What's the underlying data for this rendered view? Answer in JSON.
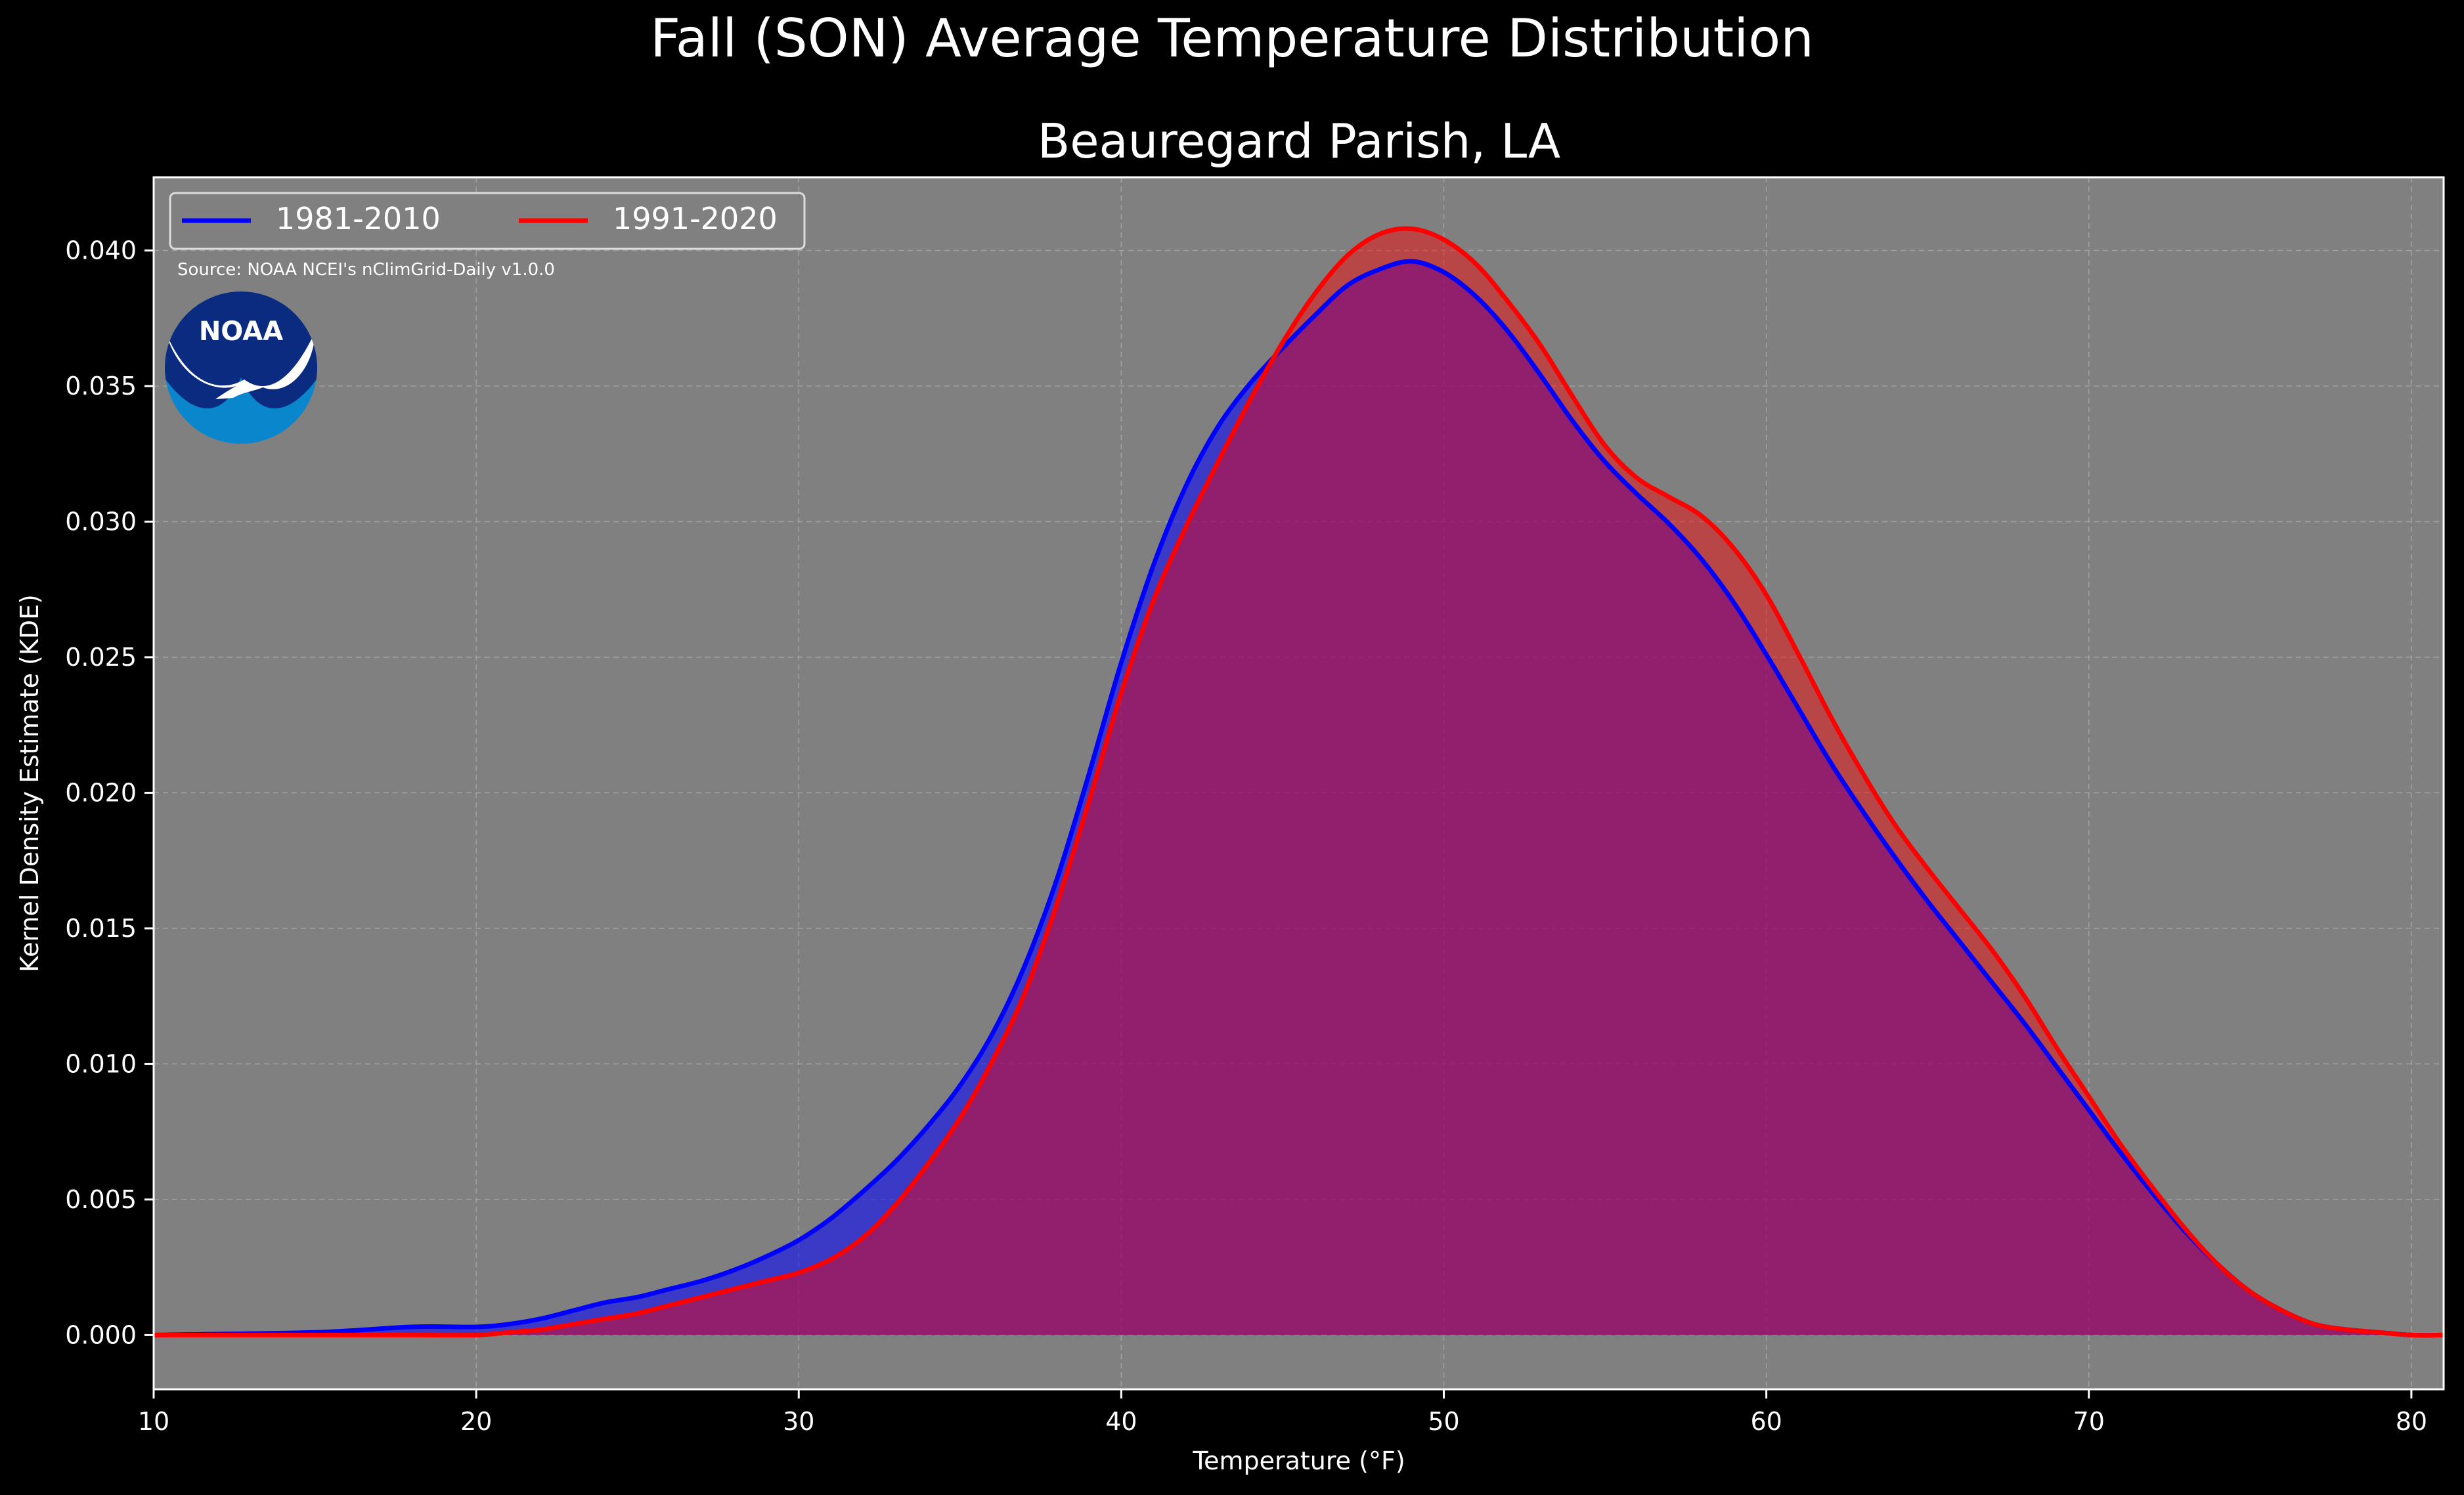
{
  "figure": {
    "suptitle": "Fall (SON) Average Temperature Distribution",
    "source_note": "Source: NOAA NCEI's nClimGrid-Daily v1.0.0",
    "logo_text": "NOAA"
  },
  "colors": {
    "figure_bg": "#000000",
    "axes_bg": "#808080",
    "text": "#ffffff",
    "grid": "#b0b0b0",
    "series_1981": "#0000ff",
    "series_1991": "#ff0000",
    "logo_dark": "#0a2b80",
    "logo_light": "#0a87cc"
  },
  "chart_data": {
    "type": "area",
    "title": "Beauregard Parish, LA",
    "xlabel": "Temperature (°F)",
    "ylabel": "Kernel Density Estimate (KDE)",
    "xlim": [
      10,
      81
    ],
    "ylim": [
      -0.002,
      0.0427
    ],
    "xticks": [
      10,
      20,
      30,
      40,
      50,
      60,
      70,
      80
    ],
    "yticks": [
      0.0,
      0.005,
      0.01,
      0.015,
      0.02,
      0.025,
      0.03,
      0.035,
      0.04
    ],
    "yticklabels": [
      "0.000",
      "0.005",
      "0.010",
      "0.015",
      "0.020",
      "0.025",
      "0.030",
      "0.035",
      "0.040"
    ],
    "grid": true,
    "legend": "top-left",
    "series": [
      {
        "name": "1981-2010",
        "color": "#0000ff",
        "x": [
          10,
          15,
          18,
          20,
          21,
          22,
          23,
          24,
          25,
          26,
          27,
          28,
          29,
          30,
          31,
          32,
          33,
          34,
          35,
          36,
          37,
          38,
          39,
          40,
          41,
          42,
          43,
          44,
          45,
          46,
          47,
          48,
          49,
          50,
          51,
          52,
          53,
          54,
          55,
          56,
          57,
          58,
          59,
          60,
          61,
          62,
          63,
          64,
          65,
          66,
          67,
          68,
          69,
          70,
          71,
          72,
          73,
          74,
          75,
          76,
          77,
          78,
          79,
          80,
          81
        ],
        "y": [
          0.0,
          0.0001,
          0.0003,
          0.0003,
          0.0004,
          0.0006,
          0.0009,
          0.0012,
          0.0014,
          0.0017,
          0.002,
          0.0024,
          0.0029,
          0.0035,
          0.0043,
          0.0053,
          0.0064,
          0.0077,
          0.0092,
          0.0111,
          0.0136,
          0.0168,
          0.0207,
          0.0248,
          0.0284,
          0.0313,
          0.0335,
          0.0351,
          0.0364,
          0.0376,
          0.0387,
          0.0393,
          0.0396,
          0.0392,
          0.0383,
          0.037,
          0.0354,
          0.0337,
          0.0322,
          0.031,
          0.0299,
          0.0286,
          0.027,
          0.0251,
          0.0231,
          0.0211,
          0.0193,
          0.0176,
          0.016,
          0.0145,
          0.013,
          0.0115,
          0.0099,
          0.0083,
          0.0067,
          0.0052,
          0.0038,
          0.0026,
          0.0016,
          0.0009,
          0.0004,
          0.0002,
          0.0001,
          0.0,
          0.0
        ]
      },
      {
        "name": "1991-2020",
        "color": "#ff0000",
        "x": [
          10,
          15,
          18,
          20,
          21,
          22,
          23,
          24,
          25,
          26,
          27,
          28,
          29,
          30,
          31,
          32,
          33,
          34,
          35,
          36,
          37,
          38,
          39,
          40,
          41,
          42,
          43,
          44,
          45,
          46,
          47,
          48,
          49,
          50,
          51,
          52,
          53,
          54,
          55,
          56,
          57,
          58,
          59,
          60,
          61,
          62,
          63,
          64,
          65,
          66,
          67,
          68,
          69,
          70,
          71,
          72,
          73,
          74,
          75,
          76,
          77,
          78,
          79,
          80,
          81
        ],
        "y": [
          0.0,
          0.0,
          0.0,
          0.0,
          0.0001,
          0.0002,
          0.0004,
          0.0006,
          0.0008,
          0.0011,
          0.0014,
          0.0017,
          0.002,
          0.0023,
          0.0028,
          0.0036,
          0.0048,
          0.0063,
          0.008,
          0.0101,
          0.0126,
          0.0159,
          0.0197,
          0.0237,
          0.0271,
          0.0298,
          0.0322,
          0.0345,
          0.0366,
          0.0384,
          0.0398,
          0.0406,
          0.0408,
          0.0404,
          0.0395,
          0.0381,
          0.0365,
          0.0346,
          0.0328,
          0.0316,
          0.0309,
          0.0302,
          0.029,
          0.0273,
          0.0251,
          0.0228,
          0.0207,
          0.0188,
          0.0172,
          0.0157,
          0.0142,
          0.0125,
          0.0106,
          0.0088,
          0.007,
          0.0054,
          0.0039,
          0.0026,
          0.0016,
          0.0009,
          0.0004,
          0.0002,
          0.0001,
          0.0,
          0.0
        ]
      }
    ]
  }
}
